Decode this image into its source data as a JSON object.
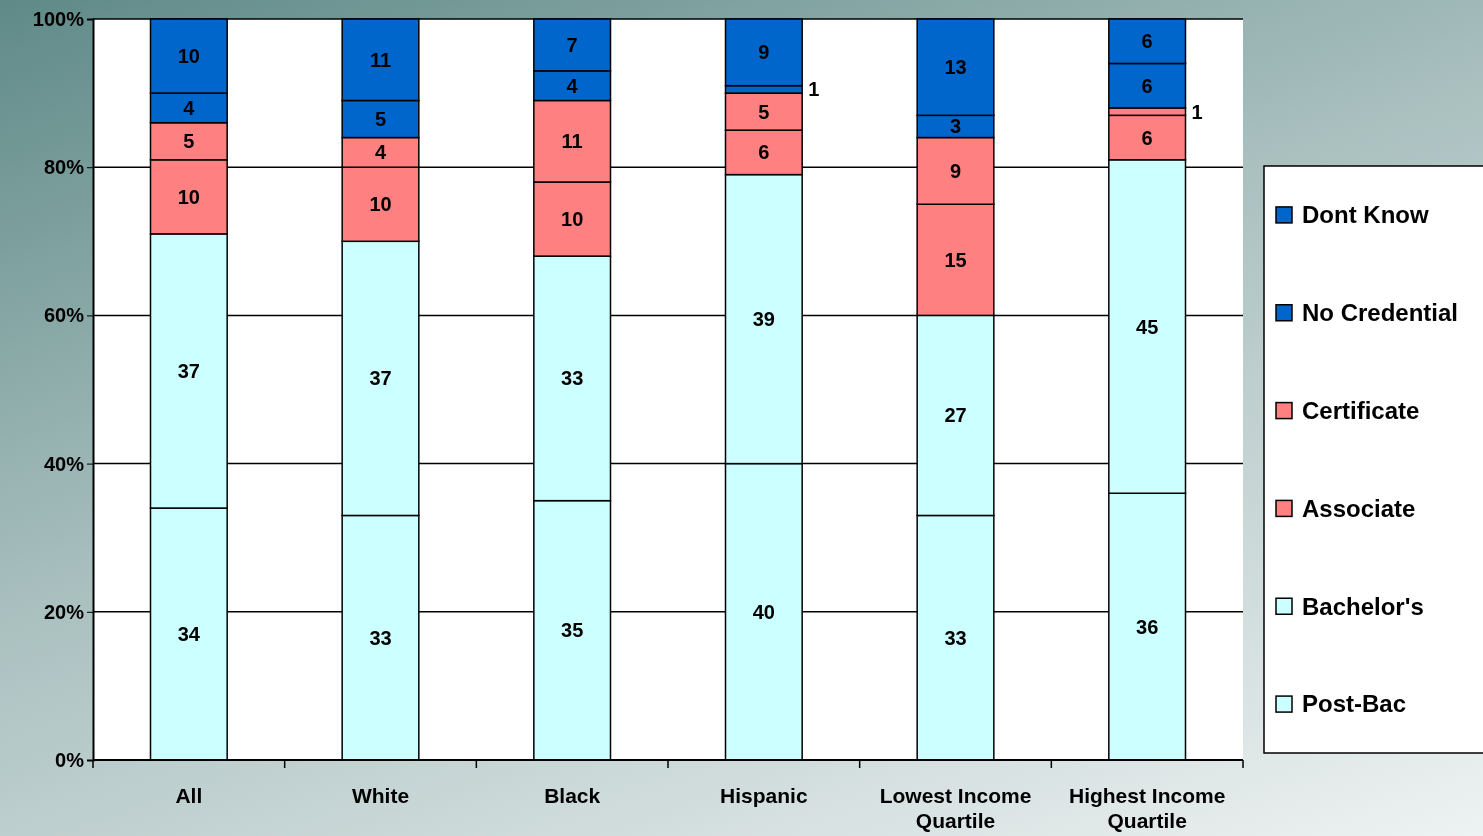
{
  "chart_data": {
    "type": "bar",
    "stacked": true,
    "categories": [
      "All",
      "White",
      "Black",
      "Hispanic",
      "Lowest Income Quartile",
      "Highest Income Quartile"
    ],
    "series": [
      {
        "name": "Post-Bac",
        "color": "#ccffff",
        "values": [
          34,
          33,
          35,
          40,
          33,
          36
        ]
      },
      {
        "name": "Bachelor's",
        "color": "#ccffff",
        "values": [
          37,
          37,
          33,
          39,
          27,
          45
        ]
      },
      {
        "name": "Associate",
        "color": "#ff8080",
        "values": [
          10,
          10,
          10,
          6,
          15,
          6
        ]
      },
      {
        "name": "Certificate",
        "color": "#ff8080",
        "values": [
          5,
          4,
          11,
          5,
          9,
          1
        ]
      },
      {
        "name": "No Credential",
        "color": "#0066cc",
        "values": [
          4,
          5,
          4,
          1,
          3,
          6
        ]
      },
      {
        "name": "Dont Know",
        "color": "#0066cc",
        "values": [
          10,
          11,
          7,
          9,
          13,
          6
        ]
      }
    ],
    "ylim": [
      0,
      100
    ],
    "yticks": [
      {
        "value": 0,
        "label": "0%"
      },
      {
        "value": 20,
        "label": "20%"
      },
      {
        "value": 40,
        "label": "40%"
      },
      {
        "value": 60,
        "label": "60%"
      },
      {
        "value": 80,
        "label": "80%"
      },
      {
        "value": 100,
        "label": "100%"
      }
    ],
    "grid": "y",
    "legend": "right",
    "data_labels": true
  }
}
